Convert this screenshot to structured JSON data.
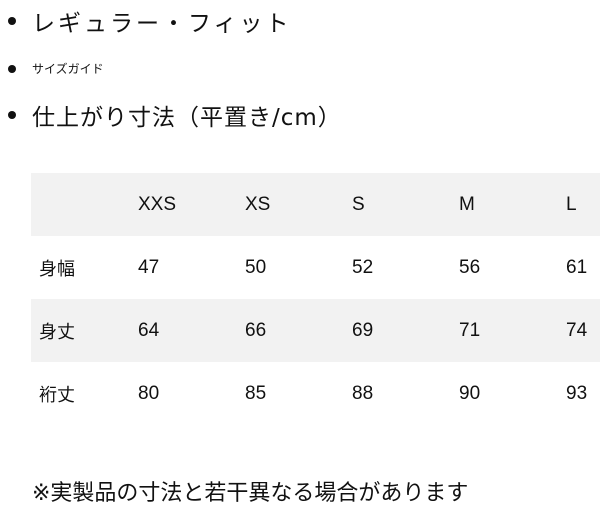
{
  "bullets": [
    "レギュラー・フィット",
    "サイズガイド",
    "仕上がり寸法（平置き/cm）"
  ],
  "table": {
    "headers": [
      "",
      "XXS",
      "XS",
      "S",
      "M",
      "L"
    ],
    "rows": [
      {
        "label": "身幅",
        "values": [
          "47",
          "50",
          "52",
          "56",
          "61"
        ]
      },
      {
        "label": "身丈",
        "values": [
          "64",
          "66",
          "69",
          "71",
          "74"
        ]
      },
      {
        "label": "裄丈",
        "values": [
          "80",
          "85",
          "88",
          "90",
          "93"
        ]
      }
    ]
  },
  "note": "※実製品の寸法と若干異なる場合があります",
  "colors": {
    "row_stripe": "#f2f2f2"
  }
}
